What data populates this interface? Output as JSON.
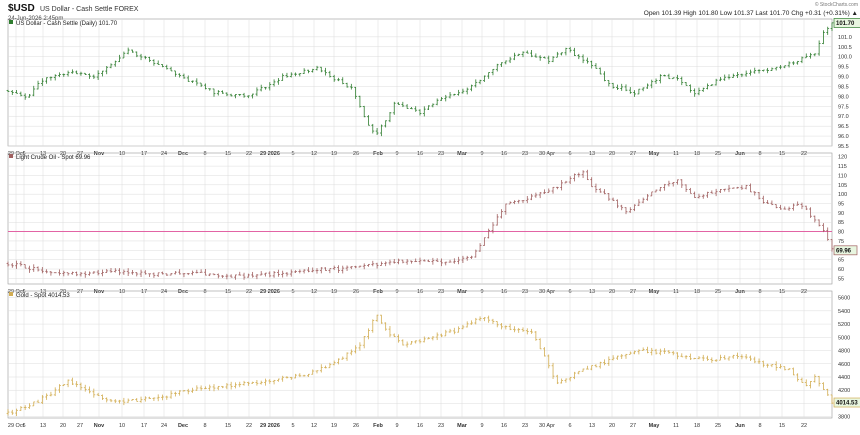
{
  "header": {
    "symbol": "$USD",
    "name": "US Dollar - Cash Settle FOREX",
    "date": "24-Jun-2026 2:45pm",
    "quote": "Open 101.39  High 101.80  Low 101.37  Last 101.70  Chg +0.31 (+0.31%) ▲",
    "brand": "© StockCharts.com"
  },
  "x_axis": {
    "labels": [
      "29 Oct",
      "6",
      "13",
      "20",
      "27",
      "Nov",
      "10",
      "17",
      "24",
      "Dec",
      "8",
      "15",
      "22",
      "29 2026",
      "5",
      "12",
      "19",
      "26",
      "Feb",
      "9",
      "16",
      "23",
      "Mar",
      "9",
      "16",
      "23",
      "30 Apr",
      "6",
      "13",
      "20",
      "27",
      "May",
      "11",
      "18",
      "25",
      "Jun",
      "8",
      "15",
      "22"
    ]
  },
  "colors": {
    "usd": "#2f7d2f",
    "crude": "#a06060",
    "gold": "#d2ad52",
    "refline": "#e0509a",
    "grid": "#dcdcdc"
  },
  "chart_data": [
    {
      "type": "ohlc",
      "title": "US Dollar - Cash Settle (Daily) 101.70",
      "last_label": "101.70",
      "ylim": [
        95.5,
        101.9
      ],
      "yticks": [
        "101.0",
        "100.5",
        "100.0",
        "99.5",
        "99.0",
        "98.5",
        "98.0",
        "97.5",
        "97.0",
        "96.5",
        "96.0",
        "95.5"
      ],
      "ytick_values": [
        101.0,
        100.5,
        100.0,
        99.5,
        99.0,
        98.5,
        98.0,
        97.5,
        97.0,
        96.5,
        96.0,
        95.5
      ],
      "ref_line": null,
      "anchors": [
        [
          0,
          98.3
        ],
        [
          4,
          97.9
        ],
        [
          8,
          98.8
        ],
        [
          14,
          99.2
        ],
        [
          20,
          99.0
        ],
        [
          28,
          100.3
        ],
        [
          36,
          99.5
        ],
        [
          42,
          98.8
        ],
        [
          48,
          98.2
        ],
        [
          56,
          98.0
        ],
        [
          64,
          99.0
        ],
        [
          72,
          99.4
        ],
        [
          80,
          98.4
        ],
        [
          84,
          96.5
        ],
        [
          86,
          96.1
        ],
        [
          90,
          97.6
        ],
        [
          96,
          97.2
        ],
        [
          102,
          98.0
        ],
        [
          108,
          98.5
        ],
        [
          114,
          99.6
        ],
        [
          120,
          100.2
        ],
        [
          126,
          99.8
        ],
        [
          130,
          100.4
        ],
        [
          136,
          99.6
        ],
        [
          140,
          98.6
        ],
        [
          146,
          98.2
        ],
        [
          152,
          99.0
        ],
        [
          156,
          98.9
        ],
        [
          160,
          98.1
        ],
        [
          166,
          98.9
        ],
        [
          172,
          99.2
        ],
        [
          178,
          99.4
        ],
        [
          184,
          99.8
        ],
        [
          188,
          100.2
        ],
        [
          190,
          101.2
        ],
        [
          192,
          101.7
        ]
      ]
    },
    {
      "type": "ohlc",
      "title": "Light Crude Oil - Spot 69.96",
      "last_label": "69.96",
      "ylim": [
        52,
        122
      ],
      "yticks": [
        "120",
        "115",
        "110",
        "105",
        "100",
        "95",
        "90",
        "85",
        "80",
        "75",
        "70",
        "65",
        "60",
        "55"
      ],
      "ytick_values": [
        120,
        115,
        110,
        105,
        100,
        95,
        90,
        85,
        80,
        75,
        70,
        65,
        60,
        55
      ],
      "ref_line": 80,
      "anchors": [
        [
          0,
          63
        ],
        [
          6,
          60
        ],
        [
          12,
          58
        ],
        [
          18,
          57
        ],
        [
          24,
          59
        ],
        [
          30,
          58
        ],
        [
          36,
          57
        ],
        [
          42,
          58
        ],
        [
          48,
          57
        ],
        [
          54,
          56
        ],
        [
          60,
          57
        ],
        [
          66,
          58
        ],
        [
          72,
          60
        ],
        [
          78,
          60
        ],
        [
          84,
          62
        ],
        [
          90,
          64
        ],
        [
          96,
          64
        ],
        [
          102,
          64
        ],
        [
          108,
          66
        ],
        [
          110,
          72
        ],
        [
          112,
          80
        ],
        [
          114,
          88
        ],
        [
          116,
          95
        ],
        [
          120,
          97
        ],
        [
          124,
          100
        ],
        [
          128,
          104
        ],
        [
          132,
          110
        ],
        [
          134,
          112
        ],
        [
          136,
          104
        ],
        [
          140,
          98
        ],
        [
          144,
          90
        ],
        [
          148,
          97
        ],
        [
          152,
          104
        ],
        [
          156,
          107
        ],
        [
          160,
          98
        ],
        [
          166,
          103
        ],
        [
          172,
          104
        ],
        [
          176,
          96
        ],
        [
          180,
          92
        ],
        [
          184,
          94
        ],
        [
          186,
          92
        ],
        [
          188,
          86
        ],
        [
          190,
          80
        ],
        [
          192,
          70
        ]
      ]
    },
    {
      "type": "ohlc",
      "title": "Gold - Spot 4014.53",
      "last_label": "4014.53",
      "ylim": [
        3780,
        5700
      ],
      "yticks": [
        "5600",
        "5400",
        "5200",
        "5000",
        "4800",
        "4600",
        "4400",
        "4200",
        "4000",
        "3800"
      ],
      "ytick_values": [
        5600,
        5400,
        5200,
        5000,
        4800,
        4600,
        4400,
        4200,
        4000,
        3800
      ],
      "ref_line": null,
      "anchors": [
        [
          0,
          3850
        ],
        [
          6,
          4000
        ],
        [
          10,
          4150
        ],
        [
          14,
          4350
        ],
        [
          18,
          4200
        ],
        [
          24,
          4020
        ],
        [
          30,
          4050
        ],
        [
          36,
          4100
        ],
        [
          42,
          4200
        ],
        [
          48,
          4250
        ],
        [
          56,
          4300
        ],
        [
          64,
          4380
        ],
        [
          70,
          4450
        ],
        [
          76,
          4600
        ],
        [
          82,
          4900
        ],
        [
          86,
          5350
        ],
        [
          88,
          5100
        ],
        [
          92,
          4900
        ],
        [
          98,
          4980
        ],
        [
          104,
          5100
        ],
        [
          110,
          5300
        ],
        [
          116,
          5150
        ],
        [
          122,
          5100
        ],
        [
          128,
          4300
        ],
        [
          132,
          4450
        ],
        [
          138,
          4600
        ],
        [
          146,
          4800
        ],
        [
          152,
          4780
        ],
        [
          158,
          4700
        ],
        [
          164,
          4650
        ],
        [
          170,
          4720
        ],
        [
          176,
          4600
        ],
        [
          182,
          4500
        ],
        [
          186,
          4250
        ],
        [
          188,
          4400
        ],
        [
          190,
          4200
        ],
        [
          192,
          4014
        ]
      ]
    }
  ]
}
